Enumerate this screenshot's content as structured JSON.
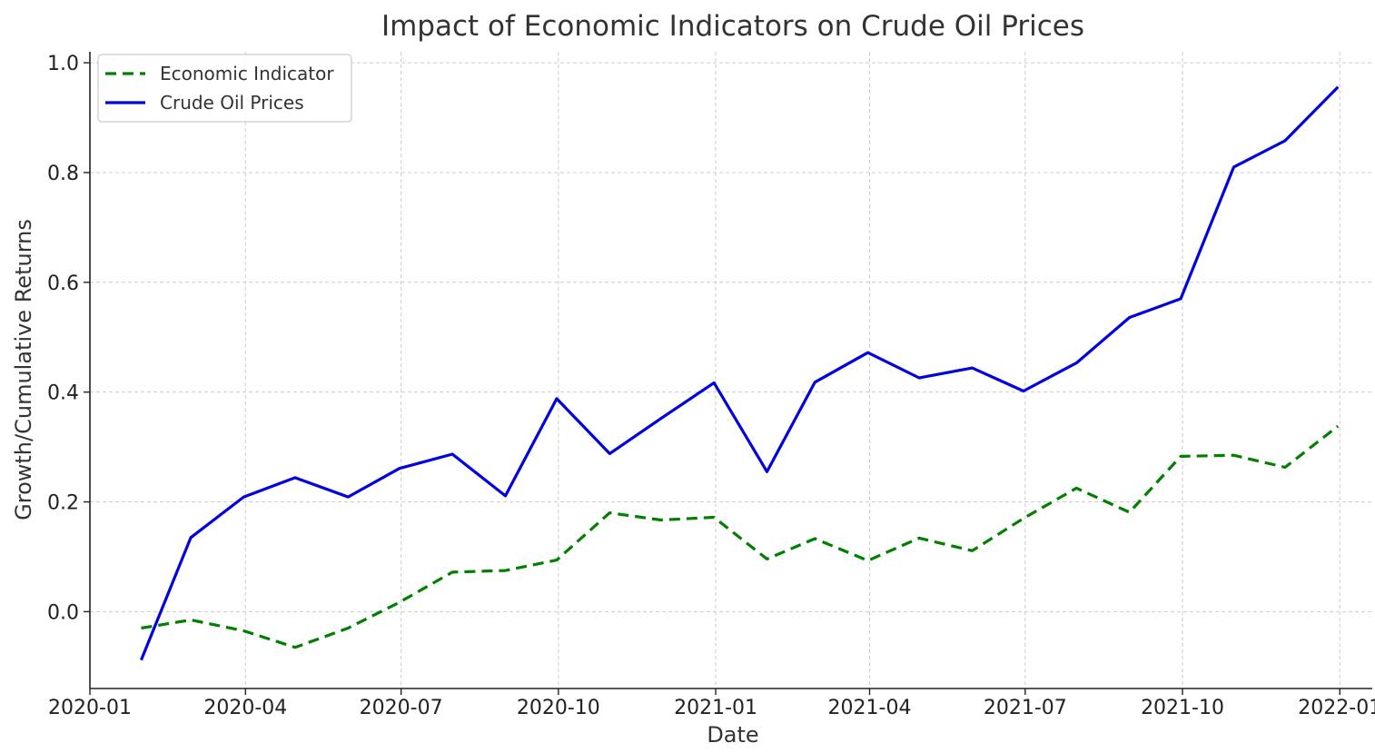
{
  "chart_data": {
    "type": "line",
    "title": "Impact of Economic Indicators on Crude Oil Prices",
    "xlabel": "Date",
    "ylabel": "Growth/Cumulative Returns",
    "grid": true,
    "legend_position": "top-left",
    "xlim": [
      "2020-01-01",
      "2022-01-20"
    ],
    "ylim": [
      -0.14,
      1.02
    ],
    "x_ticks": [
      "2020-01",
      "2020-04",
      "2020-07",
      "2020-10",
      "2021-01",
      "2021-04",
      "2021-07",
      "2021-10",
      "2022-01"
    ],
    "y_ticks": [
      "0.0",
      "0.2",
      "0.4",
      "0.6",
      "0.8",
      "1.0"
    ],
    "x": [
      "2020-01-31",
      "2020-02-29",
      "2020-03-31",
      "2020-04-30",
      "2020-05-31",
      "2020-06-30",
      "2020-07-31",
      "2020-08-31",
      "2020-09-30",
      "2020-10-31",
      "2020-11-30",
      "2020-12-31",
      "2021-01-31",
      "2021-02-28",
      "2021-03-31",
      "2021-04-30",
      "2021-05-31",
      "2021-06-30",
      "2021-07-31",
      "2021-08-31",
      "2021-09-30",
      "2021-10-31",
      "2021-11-30",
      "2021-12-31"
    ],
    "series": [
      {
        "name": "Economic Indicator",
        "color": "#007f00",
        "style": "dashed",
        "values": [
          -0.03,
          -0.015,
          -0.035,
          -0.065,
          -0.03,
          0.017,
          0.072,
          0.075,
          0.094,
          0.18,
          0.167,
          0.172,
          0.096,
          0.133,
          0.093,
          0.134,
          0.111,
          0.17,
          0.225,
          0.181,
          0.283,
          0.285,
          0.263,
          0.338
        ]
      },
      {
        "name": "Crude Oil Prices",
        "color": "#0000e0",
        "style": "solid",
        "values": [
          -0.088,
          0.135,
          0.209,
          0.244,
          0.209,
          0.261,
          0.287,
          0.211,
          0.388,
          0.288,
          0.352,
          0.417,
          0.255,
          0.418,
          0.472,
          0.426,
          0.444,
          0.402,
          0.453,
          0.536,
          0.57,
          0.81,
          0.858,
          0.956
        ]
      }
    ]
  }
}
